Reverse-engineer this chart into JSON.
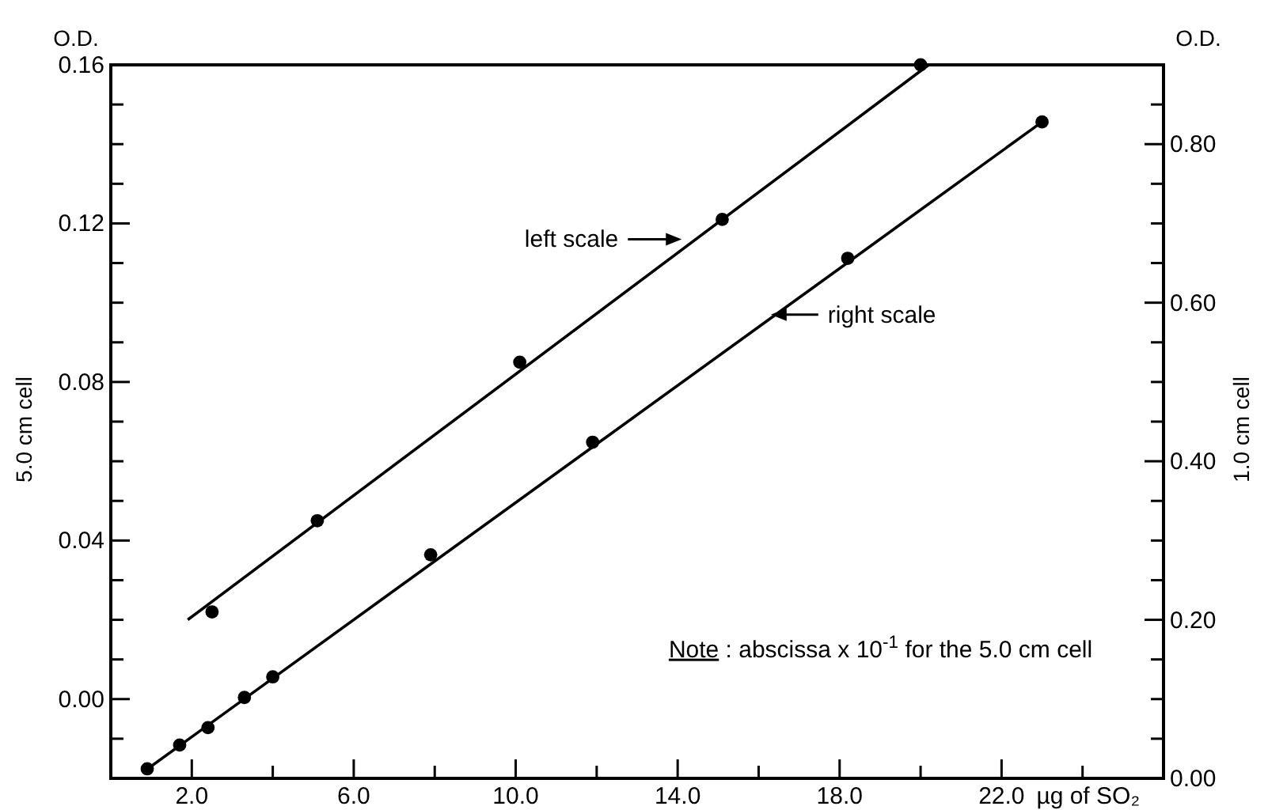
{
  "chart_data": {
    "type": "scatter",
    "ylabel": "5.0 cm cell",
    "y2label": "1.0 cm cell",
    "xlabel": "µg of SO₂",
    "xlim": [
      0,
      26
    ],
    "xticks": [
      {
        "value": 2,
        "label": "2.0"
      },
      {
        "value": 4,
        "label": null
      },
      {
        "value": 6,
        "label": "6.0"
      },
      {
        "value": 8,
        "label": null
      },
      {
        "value": 10,
        "label": "10.0"
      },
      {
        "value": 12,
        "label": null
      },
      {
        "value": 14,
        "label": "14.0"
      },
      {
        "value": 16,
        "label": null
      },
      {
        "value": 18,
        "label": "18.0"
      },
      {
        "value": 20,
        "label": null
      },
      {
        "value": 22,
        "label": "22.0"
      },
      {
        "value": 24,
        "label": null
      }
    ],
    "ylim": [
      -0.02,
      0.16
    ],
    "yticks": [
      {
        "value": -0.01,
        "label": null
      },
      {
        "value": 0,
        "label": "0.00"
      },
      {
        "value": 0.01,
        "label": null
      },
      {
        "value": 0.02,
        "label": null
      },
      {
        "value": 0.03,
        "label": null
      },
      {
        "value": 0.04,
        "label": "0.04"
      },
      {
        "value": 0.05,
        "label": null
      },
      {
        "value": 0.06,
        "label": null
      },
      {
        "value": 0.07,
        "label": null
      },
      {
        "value": 0.08,
        "label": "0.08"
      },
      {
        "value": 0.09,
        "label": null
      },
      {
        "value": 0.1,
        "label": null
      },
      {
        "value": 0.11,
        "label": null
      },
      {
        "value": 0.12,
        "label": "0.12"
      },
      {
        "value": 0.13,
        "label": null
      },
      {
        "value": 0.14,
        "label": null
      },
      {
        "value": 0.15,
        "label": null
      },
      {
        "value": 0.16,
        "label": "0.16"
      }
    ],
    "y2lim": [
      0,
      0.9
    ],
    "y2ticks": [
      {
        "value": 0,
        "label": "0.00"
      },
      {
        "value": 0.05,
        "label": null
      },
      {
        "value": 0.1,
        "label": null
      },
      {
        "value": 0.15,
        "label": null
      },
      {
        "value": 0.2,
        "label": "0.20"
      },
      {
        "value": 0.25,
        "label": null
      },
      {
        "value": 0.3,
        "label": null
      },
      {
        "value": 0.35,
        "label": null
      },
      {
        "value": 0.4,
        "label": "0.40"
      },
      {
        "value": 0.45,
        "label": null
      },
      {
        "value": 0.5,
        "label": null
      },
      {
        "value": 0.55,
        "label": null
      },
      {
        "value": 0.6,
        "label": "0.60"
      },
      {
        "value": 0.65,
        "label": null
      },
      {
        "value": 0.7,
        "label": null
      },
      {
        "value": 0.75,
        "label": null
      },
      {
        "value": 0.8,
        "label": "0.80"
      },
      {
        "value": 0.85,
        "label": null
      }
    ],
    "grid": false,
    "marker": "circle",
    "series": [
      {
        "color": "#000000",
        "x": [
          2.5,
          5.1,
          10.1,
          15.1,
          20.0
        ],
        "values": [
          0.022,
          0.045,
          0.085,
          0.121,
          0.16
        ]
      },
      {
        "type": "line",
        "color": "#000000",
        "marker": "none",
        "line_style": "solid",
        "x": [
          1.9,
          20.2
        ],
        "values": [
          0.02,
          0.16
        ]
      },
      {
        "axis": "y2",
        "color": "#000000",
        "x": [
          0.9,
          1.7,
          2.4,
          3.3,
          4.0,
          7.9,
          11.9,
          18.2,
          23.0
        ],
        "values": [
          0.012,
          0.042,
          0.064,
          0.102,
          0.128,
          0.282,
          0.424,
          0.656,
          0.828
        ]
      },
      {
        "type": "line",
        "axis": "y2",
        "color": "#000000",
        "marker": "none",
        "line_style": "solid",
        "x": [
          0.8,
          23.0
        ],
        "values": [
          0.008,
          0.828
        ]
      }
    ],
    "annotations": [
      {
        "text": "left scale",
        "x": 14.1,
        "y": 0.116
      },
      {
        "text": "right scale",
        "x": 16.3,
        "y": 0.097
      },
      "Note : abscissa x 10$^{-1}$ for the 5.0 cm cell",
      "O.D.",
      "O.D."
    ]
  }
}
